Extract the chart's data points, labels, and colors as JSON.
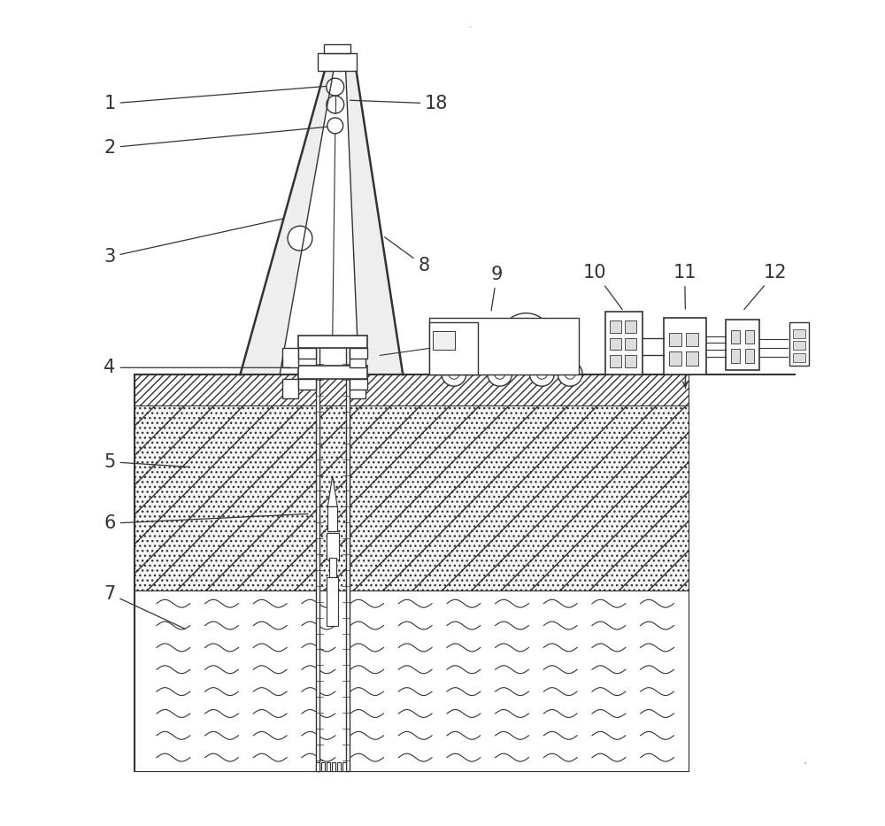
{
  "bg_color": "#ffffff",
  "line_color": "#333333",
  "label_color": "#111111",
  "figsize": [
    10.0,
    9.33
  ],
  "dpi": 100,
  "xlim": [
    0,
    10
  ],
  "ylim": [
    0,
    9.33
  ]
}
